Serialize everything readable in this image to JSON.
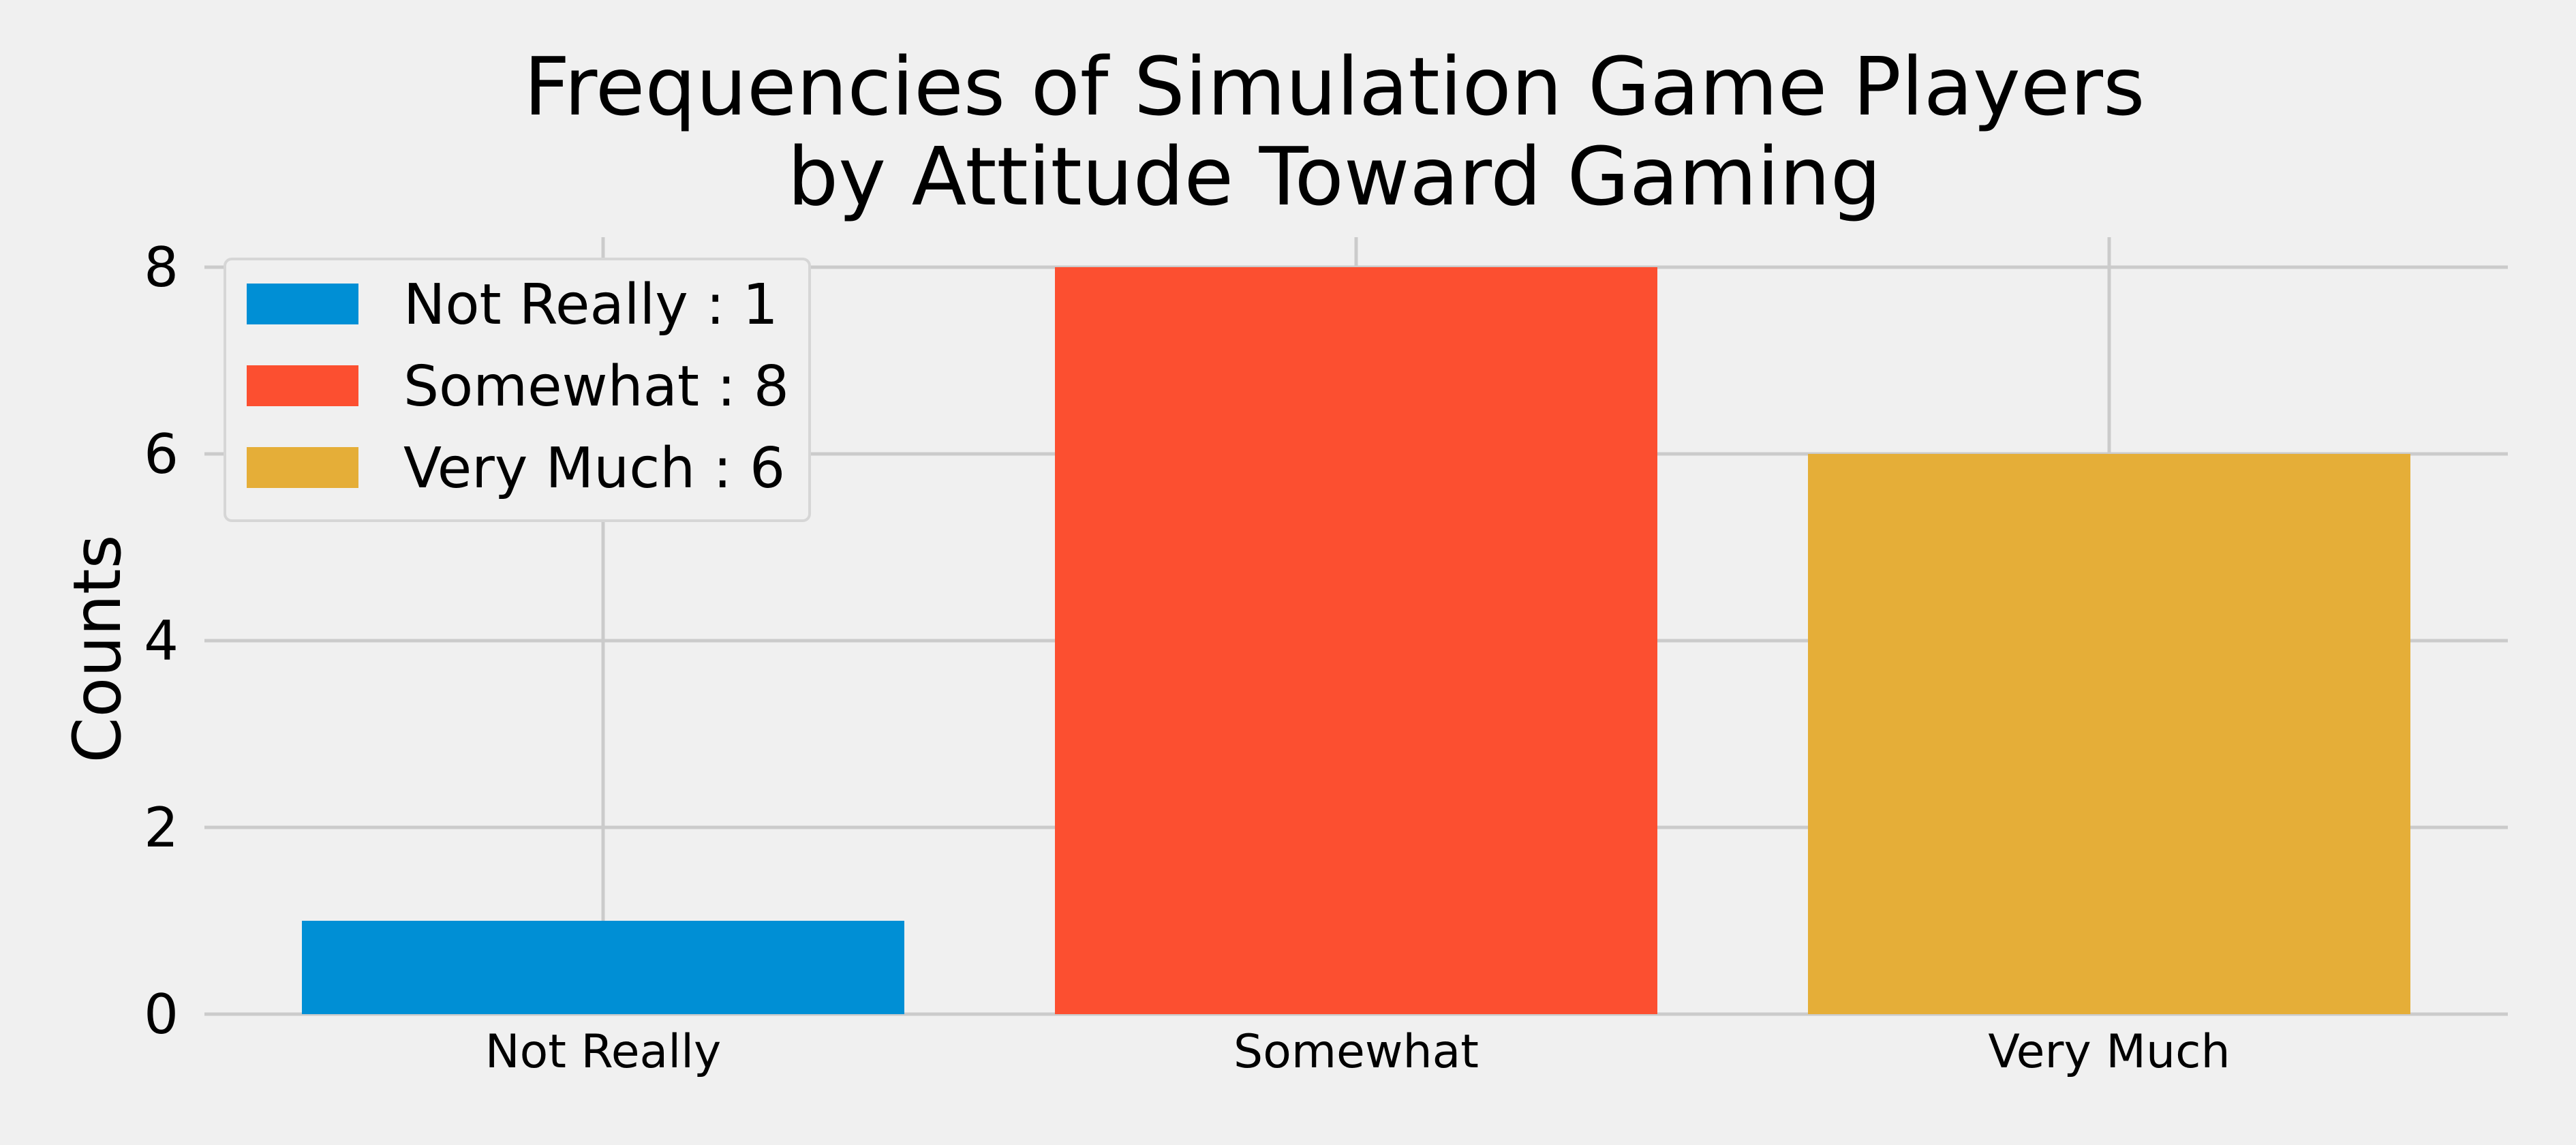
{
  "chart_data": {
    "type": "bar",
    "title": [
      "Frequencies of Simulation Game Players",
      "by Attitude Toward Gaming"
    ],
    "categories": [
      "Not Really",
      "Somewhat",
      "Very Much"
    ],
    "values": [
      1,
      8,
      6
    ],
    "colors": [
      "#008fd5",
      "#fc4f30",
      "#e5ae38"
    ],
    "xlabel": "",
    "ylabel": "Counts",
    "ylim": [
      0,
      8
    ],
    "yticks": [
      0,
      2,
      4,
      6,
      8
    ],
    "grid": true,
    "legend": {
      "placement": "top-left",
      "entries": [
        "Not Really : 1",
        "Somewhat : 8",
        "Very Much : 6"
      ]
    },
    "background": "#f0f0f0"
  }
}
